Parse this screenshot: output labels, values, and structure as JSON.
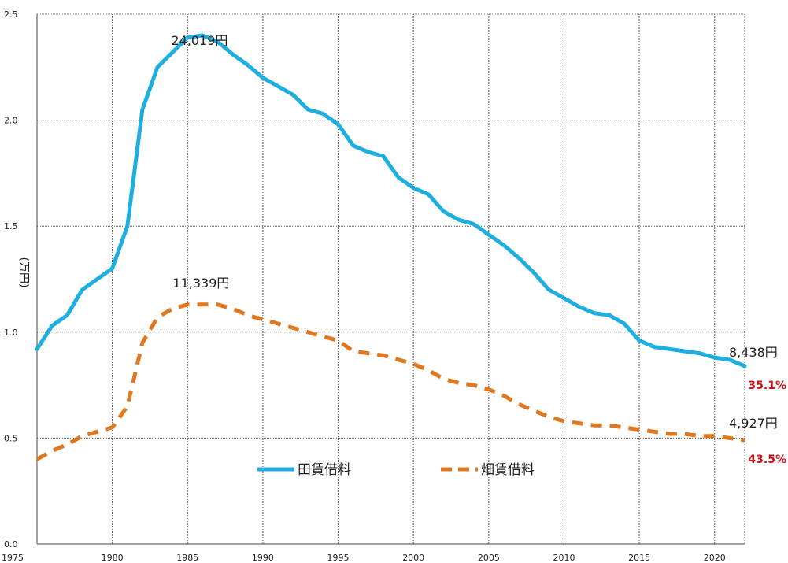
{
  "chart_data": {
    "type": "line",
    "ylabel": "(万円)",
    "xlim": [
      1975,
      2022
    ],
    "ylim": [
      0,
      2.5
    ],
    "yticks": [
      0.0,
      0.5,
      1.0,
      1.5,
      2.0,
      2.5
    ],
    "ytick_labels": [
      "0.0",
      "0.5",
      "1.0",
      "1.5",
      "2.0",
      "2.5"
    ],
    "xticks": [
      1975,
      1980,
      1985,
      1990,
      1995,
      2000,
      2005,
      2010,
      2015,
      2020
    ],
    "xtick_labels": [
      "1975",
      "1980",
      "1985",
      "1990",
      "1995",
      "2000",
      "2005",
      "2010",
      "2015",
      "2020"
    ],
    "grid": true,
    "legend_position": "bottom-center",
    "x": [
      1975,
      1976,
      1977,
      1978,
      1979,
      1980,
      1981,
      1982,
      1983,
      1984,
      1985,
      1986,
      1987,
      1988,
      1989,
      1990,
      1991,
      1992,
      1993,
      1994,
      1995,
      1996,
      1997,
      1998,
      1999,
      2000,
      2001,
      2002,
      2003,
      2004,
      2005,
      2006,
      2007,
      2008,
      2009,
      2010,
      2011,
      2012,
      2013,
      2014,
      2015,
      2016,
      2017,
      2018,
      2019,
      2020,
      2021,
      2022
    ],
    "series": [
      {
        "name": "田賃借料",
        "color": "#1eaee0",
        "style": "solid",
        "values": [
          0.92,
          1.03,
          1.08,
          1.2,
          1.25,
          1.3,
          1.5,
          2.05,
          2.25,
          2.32,
          2.39,
          2.4,
          2.37,
          2.31,
          2.26,
          2.2,
          2.16,
          2.12,
          2.05,
          2.03,
          1.98,
          1.88,
          1.85,
          1.83,
          1.73,
          1.68,
          1.65,
          1.57,
          1.53,
          1.51,
          1.46,
          1.41,
          1.35,
          1.28,
          1.2,
          1.16,
          1.12,
          1.09,
          1.08,
          1.04,
          0.96,
          0.93,
          0.92,
          0.91,
          0.9,
          0.88,
          0.87,
          0.84
        ]
      },
      {
        "name": "畑賃借料",
        "color": "#e07820",
        "style": "dashed",
        "values": [
          0.4,
          0.44,
          0.47,
          0.51,
          0.53,
          0.55,
          0.65,
          0.95,
          1.07,
          1.11,
          1.13,
          1.13,
          1.13,
          1.11,
          1.08,
          1.06,
          1.04,
          1.02,
          1.0,
          0.98,
          0.96,
          0.91,
          0.9,
          0.89,
          0.87,
          0.85,
          0.82,
          0.78,
          0.76,
          0.75,
          0.73,
          0.7,
          0.66,
          0.63,
          0.6,
          0.58,
          0.57,
          0.56,
          0.56,
          0.55,
          0.54,
          0.53,
          0.52,
          0.52,
          0.51,
          0.51,
          0.5,
          0.49
        ]
      }
    ],
    "annotations": [
      {
        "text": "24,019円",
        "x": 1986,
        "y": 2.4
      },
      {
        "text": "11,339円",
        "x": 1986,
        "y": 1.13
      },
      {
        "text": "8,438円",
        "x": 2022,
        "y": 0.84
      },
      {
        "text": "4,927円",
        "x": 2022,
        "y": 0.49
      }
    ],
    "percent_labels": [
      {
        "text": "35.1%",
        "color": "#cc1111",
        "series": 0
      },
      {
        "text": "43.5%",
        "color": "#cc1111",
        "series": 1
      }
    ]
  }
}
